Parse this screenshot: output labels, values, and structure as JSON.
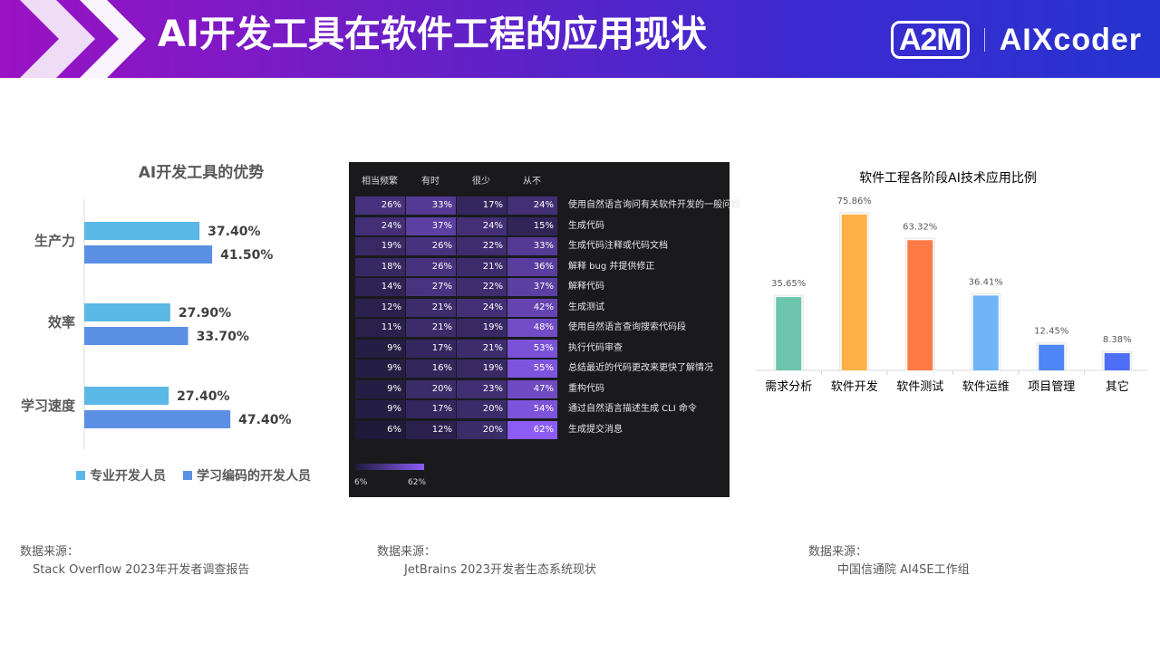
{
  "header": {
    "title": "AI开发工具在软件工程的应用现状",
    "logo_a2m": "A2M",
    "logo_aixcoder": "AIXcoder"
  },
  "colors": {
    "banner_start": "#9a12c4",
    "banner_end": "#2633cf",
    "series_pro": "#5bb7e5",
    "series_learn": "#5b8fe3"
  },
  "chart_data": [
    {
      "type": "bar",
      "orientation": "horizontal",
      "title": "AI开发工具的优势",
      "categories": [
        "生产力",
        "效率",
        "学习速度"
      ],
      "series": [
        {
          "name": "专业开发人员",
          "values": [
            37.4,
            27.9,
            27.4
          ],
          "labels": [
            "37.40%",
            "27.90%",
            "27.40%"
          ],
          "color": "#5bb7e5"
        },
        {
          "name": "学习编码的开发人员",
          "values": [
            41.5,
            33.7,
            47.4
          ],
          "labels": [
            "41.50%",
            "33.70%",
            "47.40%"
          ],
          "color": "#5b8fe3"
        }
      ],
      "legend": "bottom",
      "xlim": [
        0,
        60
      ]
    },
    {
      "type": "heatmap",
      "columns": [
        "相当频繁",
        "有时",
        "很少",
        "从不"
      ],
      "rows": [
        {
          "label": "使用自然语言询问有关软件开发的一般问题",
          "values": [
            26,
            33,
            17,
            24
          ]
        },
        {
          "label": "生成代码",
          "values": [
            24,
            37,
            24,
            15
          ]
        },
        {
          "label": "生成代码注释或代码文档",
          "values": [
            19,
            26,
            22,
            33
          ]
        },
        {
          "label": "解释 bug 并提供修正",
          "values": [
            18,
            26,
            21,
            36
          ]
        },
        {
          "label": "解释代码",
          "values": [
            14,
            27,
            22,
            37
          ]
        },
        {
          "label": "生成测试",
          "values": [
            12,
            21,
            24,
            42
          ]
        },
        {
          "label": "使用自然语言查询搜索代码段",
          "values": [
            11,
            21,
            19,
            48
          ]
        },
        {
          "label": "执行代码审查",
          "values": [
            9,
            17,
            21,
            53
          ]
        },
        {
          "label": "总结最近的代码更改来更快了解情况",
          "values": [
            9,
            16,
            19,
            55
          ]
        },
        {
          "label": "重构代码",
          "values": [
            9,
            20,
            23,
            47
          ]
        },
        {
          "label": "通过自然语言描述生成 CLI 命令",
          "values": [
            9,
            17,
            20,
            54
          ]
        },
        {
          "label": "生成提交消息",
          "values": [
            6,
            12,
            20,
            62
          ]
        }
      ],
      "scale_min": "6%",
      "scale_max": "62%"
    },
    {
      "type": "bar",
      "title": "软件工程各阶段AI技术应用比例",
      "categories": [
        "需求分析",
        "软件开发",
        "软件测试",
        "软件运维",
        "项目管理",
        "其它"
      ],
      "values": [
        35.65,
        75.86,
        63.32,
        36.41,
        12.45,
        8.38
      ],
      "labels": [
        "35.65%",
        "75.86%",
        "63.32%",
        "36.41%",
        "12.45%",
        "8.38%"
      ],
      "colors": [
        "#6cc5ac",
        "#fdb147",
        "#ff7a45",
        "#6fb4f7",
        "#4d86f5",
        "#4d6ef5"
      ],
      "ylim": [
        0,
        80
      ]
    }
  ],
  "sources": [
    {
      "label": "数据来源：",
      "text": "Stack Overflow 2023年开发者调查报告"
    },
    {
      "label": "数据来源：",
      "text": "JetBrains 2023开发者生态系统现状"
    },
    {
      "label": "数据来源：",
      "text": "中国信通院 AI4SE工作组"
    }
  ]
}
